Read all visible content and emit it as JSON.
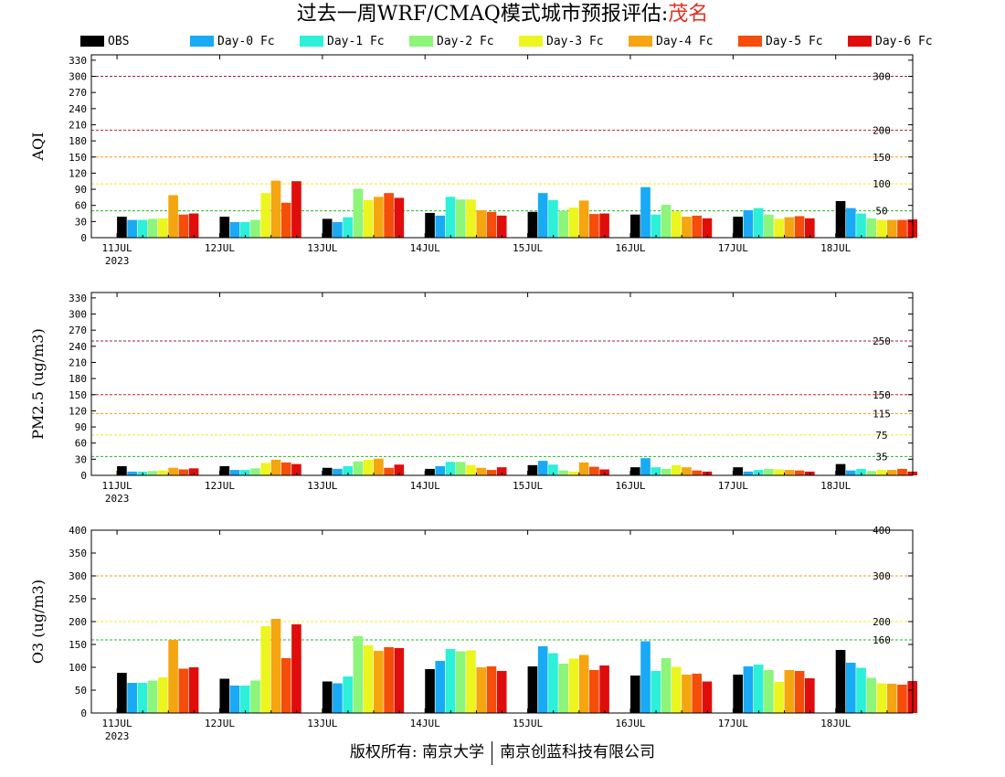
{
  "title": {
    "prefix": "过去一周WRF/CMAQ模式城市预报评估:",
    "city": "茂名",
    "city_color": "#e03020"
  },
  "legend": [
    {
      "name": "OBS",
      "color": "#000000"
    },
    {
      "name": "Day-0 Fc",
      "color": "#19aaf5"
    },
    {
      "name": "Day-1 Fc",
      "color": "#2cf0d8"
    },
    {
      "name": "Day-2 Fc",
      "color": "#8cf57a"
    },
    {
      "name": "Day-3 Fc",
      "color": "#ecf51e"
    },
    {
      "name": "Day-4 Fc",
      "color": "#f5a50f"
    },
    {
      "name": "Day-5 Fc",
      "color": "#f54d0a"
    },
    {
      "name": "Day-6 Fc",
      "color": "#e00d0d"
    }
  ],
  "footer": {
    "left": "版权所有: 南京大学",
    "right": "南京创蓝科技有限公司"
  },
  "chart_data": [
    {
      "type": "bar",
      "ylabel": "AQI",
      "ylim": [
        0,
        340
      ],
      "yticks": [
        0,
        30,
        60,
        90,
        120,
        150,
        180,
        210,
        240,
        270,
        300,
        330
      ],
      "categories": [
        "11JUL",
        "12JUL",
        "13JUL",
        "14JUL",
        "15JUL",
        "16JUL",
        "17JUL",
        "18JUL"
      ],
      "year_label": "2023",
      "grid": false,
      "reference_lines": [
        {
          "value": 50,
          "label": "50",
          "color": "#22bb22"
        },
        {
          "value": 100,
          "label": "100",
          "color": "#eeee22"
        },
        {
          "value": 150,
          "label": "150",
          "color": "#f59a1e"
        },
        {
          "value": 200,
          "label": "200",
          "color": "#cc2222"
        },
        {
          "value": 300,
          "label": "300",
          "color": "#992244"
        }
      ],
      "series": [
        {
          "name": "OBS",
          "values": [
            39,
            39,
            35,
            46,
            48,
            43,
            39,
            68
          ]
        },
        {
          "name": "Day-0 Fc",
          "values": [
            33,
            29,
            29,
            41,
            83,
            94,
            51,
            55
          ]
        },
        {
          "name": "Day-1 Fc",
          "values": [
            33,
            29,
            38,
            76,
            70,
            43,
            55,
            45
          ]
        },
        {
          "name": "Day-2 Fc",
          "values": [
            35,
            33,
            91,
            71,
            50,
            61,
            43,
            36
          ]
        },
        {
          "name": "Day-3 Fc",
          "values": [
            36,
            83,
            70,
            71,
            56,
            49,
            35,
            33
          ]
        },
        {
          "name": "Day-4 Fc",
          "values": [
            79,
            106,
            76,
            51,
            69,
            39,
            38,
            33
          ]
        },
        {
          "name": "Day-5 Fc",
          "values": [
            43,
            65,
            83,
            48,
            44,
            41,
            40,
            33
          ]
        },
        {
          "name": "Day-6 Fc",
          "values": [
            45,
            105,
            74,
            41,
            45,
            36,
            36,
            34
          ]
        }
      ]
    },
    {
      "type": "bar",
      "ylabel": "PM2.5 (ug/m3)",
      "ylim": [
        0,
        340
      ],
      "yticks": [
        0,
        30,
        60,
        90,
        120,
        150,
        180,
        210,
        240,
        270,
        300,
        330
      ],
      "categories": [
        "11JUL",
        "12JUL",
        "13JUL",
        "14JUL",
        "15JUL",
        "16JUL",
        "17JUL",
        "18JUL"
      ],
      "year_label": "2023",
      "grid": false,
      "reference_lines": [
        {
          "value": 35,
          "label": "35",
          "color": "#22bb22"
        },
        {
          "value": 75,
          "label": "75",
          "color": "#eeee22"
        },
        {
          "value": 115,
          "label": "115",
          "color": "#f59a1e"
        },
        {
          "value": 150,
          "label": "150",
          "color": "#cc2222"
        },
        {
          "value": 250,
          "label": "250",
          "color": "#992244"
        }
      ],
      "series": [
        {
          "name": "OBS",
          "values": [
            17,
            17,
            14,
            12,
            19,
            15,
            15,
            21
          ]
        },
        {
          "name": "Day-0 Fc",
          "values": [
            7,
            10,
            12,
            17,
            27,
            32,
            7,
            9
          ]
        },
        {
          "name": "Day-1 Fc",
          "values": [
            7,
            10,
            17,
            25,
            20,
            15,
            10,
            12
          ]
        },
        {
          "name": "Day-2 Fc",
          "values": [
            8,
            13,
            26,
            25,
            9,
            12,
            12,
            8
          ]
        },
        {
          "name": "Day-3 Fc",
          "values": [
            9,
            23,
            29,
            19,
            7,
            19,
            11,
            10
          ]
        },
        {
          "name": "Day-4 Fc",
          "values": [
            14,
            29,
            31,
            14,
            24,
            15,
            10,
            10
          ]
        },
        {
          "name": "Day-5 Fc",
          "values": [
            11,
            24,
            14,
            10,
            16,
            9,
            9,
            12
          ]
        },
        {
          "name": "Day-6 Fc",
          "values": [
            13,
            21,
            20,
            15,
            11,
            7,
            7,
            7
          ]
        }
      ]
    },
    {
      "type": "bar",
      "ylabel": "O3 (ug/m3)",
      "ylim": [
        0,
        400
      ],
      "yticks": [
        0,
        50,
        100,
        150,
        200,
        250,
        300,
        350,
        400
      ],
      "categories": [
        "11JUL",
        "12JUL",
        "13JUL",
        "14JUL",
        "15JUL",
        "16JUL",
        "17JUL",
        "18JUL"
      ],
      "year_label": "2023",
      "grid": false,
      "reference_lines": [
        {
          "value": 160,
          "label": "160",
          "color": "#22bb22"
        },
        {
          "value": 200,
          "label": "200",
          "color": "#eeee22"
        },
        {
          "value": 300,
          "label": "300",
          "color": "#f59a1e"
        },
        {
          "value": 400,
          "label": "400",
          "color": "#cc2222"
        }
      ],
      "series": [
        {
          "name": "OBS",
          "values": [
            88,
            75,
            69,
            96,
            102,
            82,
            84,
            138
          ]
        },
        {
          "name": "Day-0 Fc",
          "values": [
            66,
            60,
            65,
            114,
            146,
            157,
            102,
            110
          ]
        },
        {
          "name": "Day-1 Fc",
          "values": [
            66,
            60,
            80,
            140,
            131,
            92,
            106,
            99
          ]
        },
        {
          "name": "Day-2 Fc",
          "values": [
            71,
            71,
            168,
            135,
            108,
            120,
            94,
            77
          ]
        },
        {
          "name": "Day-3 Fc",
          "values": [
            78,
            190,
            148,
            137,
            119,
            101,
            68,
            65
          ]
        },
        {
          "name": "Day-4 Fc",
          "values": [
            160,
            206,
            136,
            100,
            127,
            84,
            94,
            64
          ]
        },
        {
          "name": "Day-5 Fc",
          "values": [
            97,
            120,
            144,
            102,
            94,
            86,
            92,
            62
          ]
        },
        {
          "name": "Day-6 Fc",
          "values": [
            100,
            194,
            142,
            92,
            104,
            69,
            76,
            70
          ]
        }
      ]
    }
  ]
}
